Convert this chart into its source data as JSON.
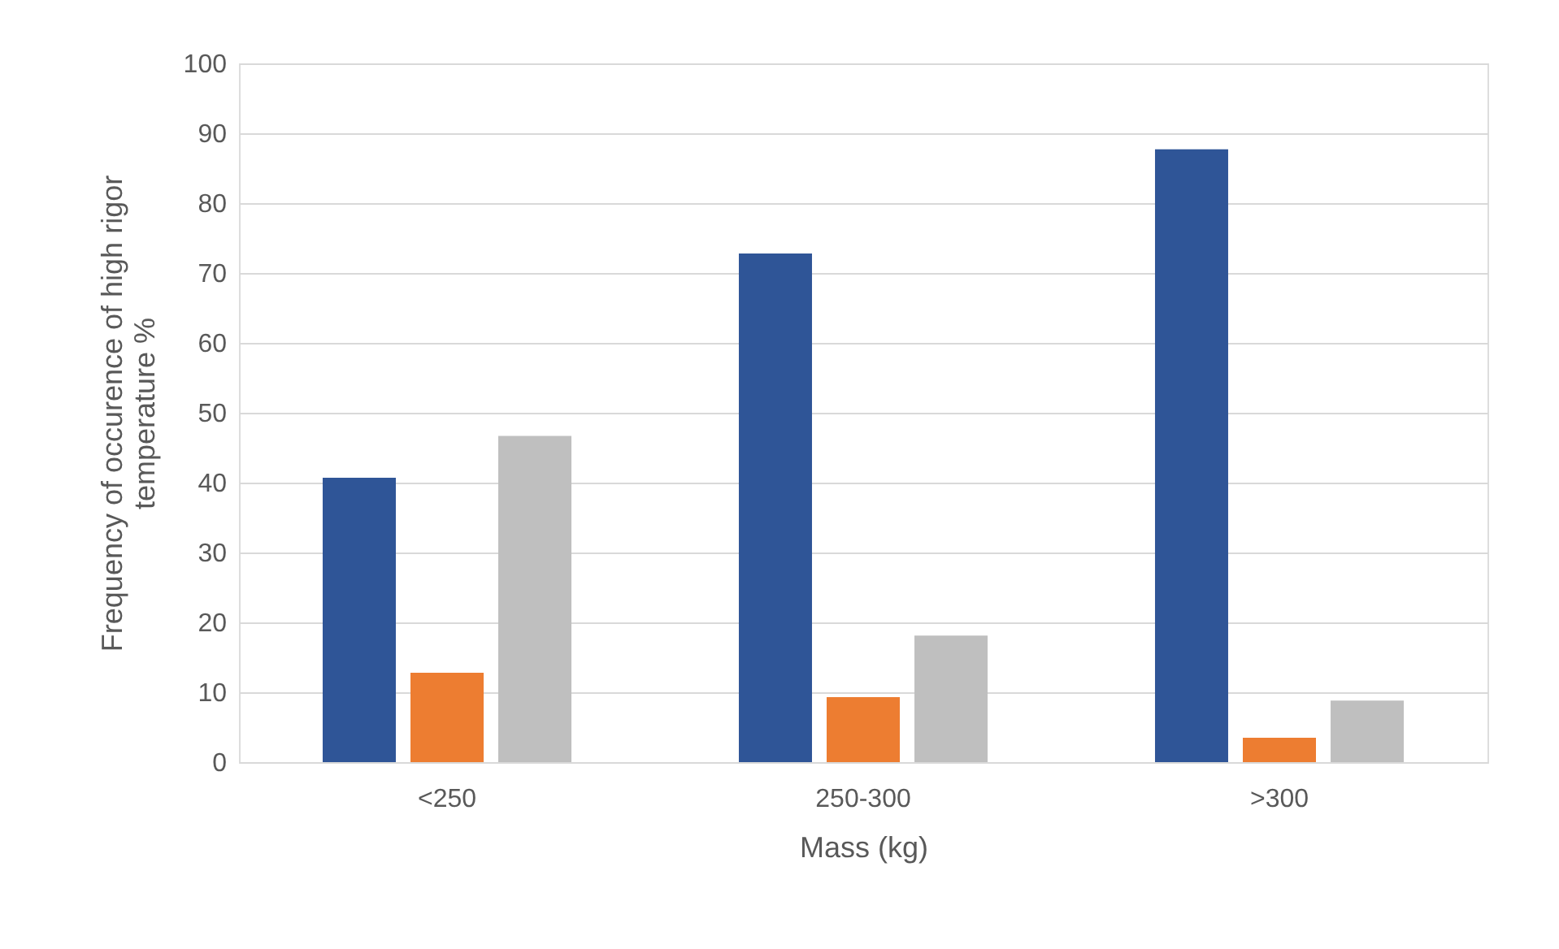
{
  "chart_data": {
    "type": "bar",
    "xlabel": "Mass (kg)",
    "ylabel": "Frequency of occurence of high rigor temperature %",
    "categories": [
      "<250",
      "250-300",
      ">300"
    ],
    "series": [
      {
        "color": "#2f5597",
        "values": [
          40.7,
          72.8,
          87.7
        ]
      },
      {
        "color": "#ed7d31",
        "values": [
          12.8,
          9.3,
          3.5
        ]
      },
      {
        "color": "#bfbfbf",
        "values": [
          46.7,
          18.1,
          8.8
        ]
      }
    ],
    "ylim": [
      0,
      100
    ],
    "yticks": [
      0,
      10,
      20,
      30,
      40,
      50,
      60,
      70,
      80,
      90,
      100
    ],
    "grid": "y"
  }
}
